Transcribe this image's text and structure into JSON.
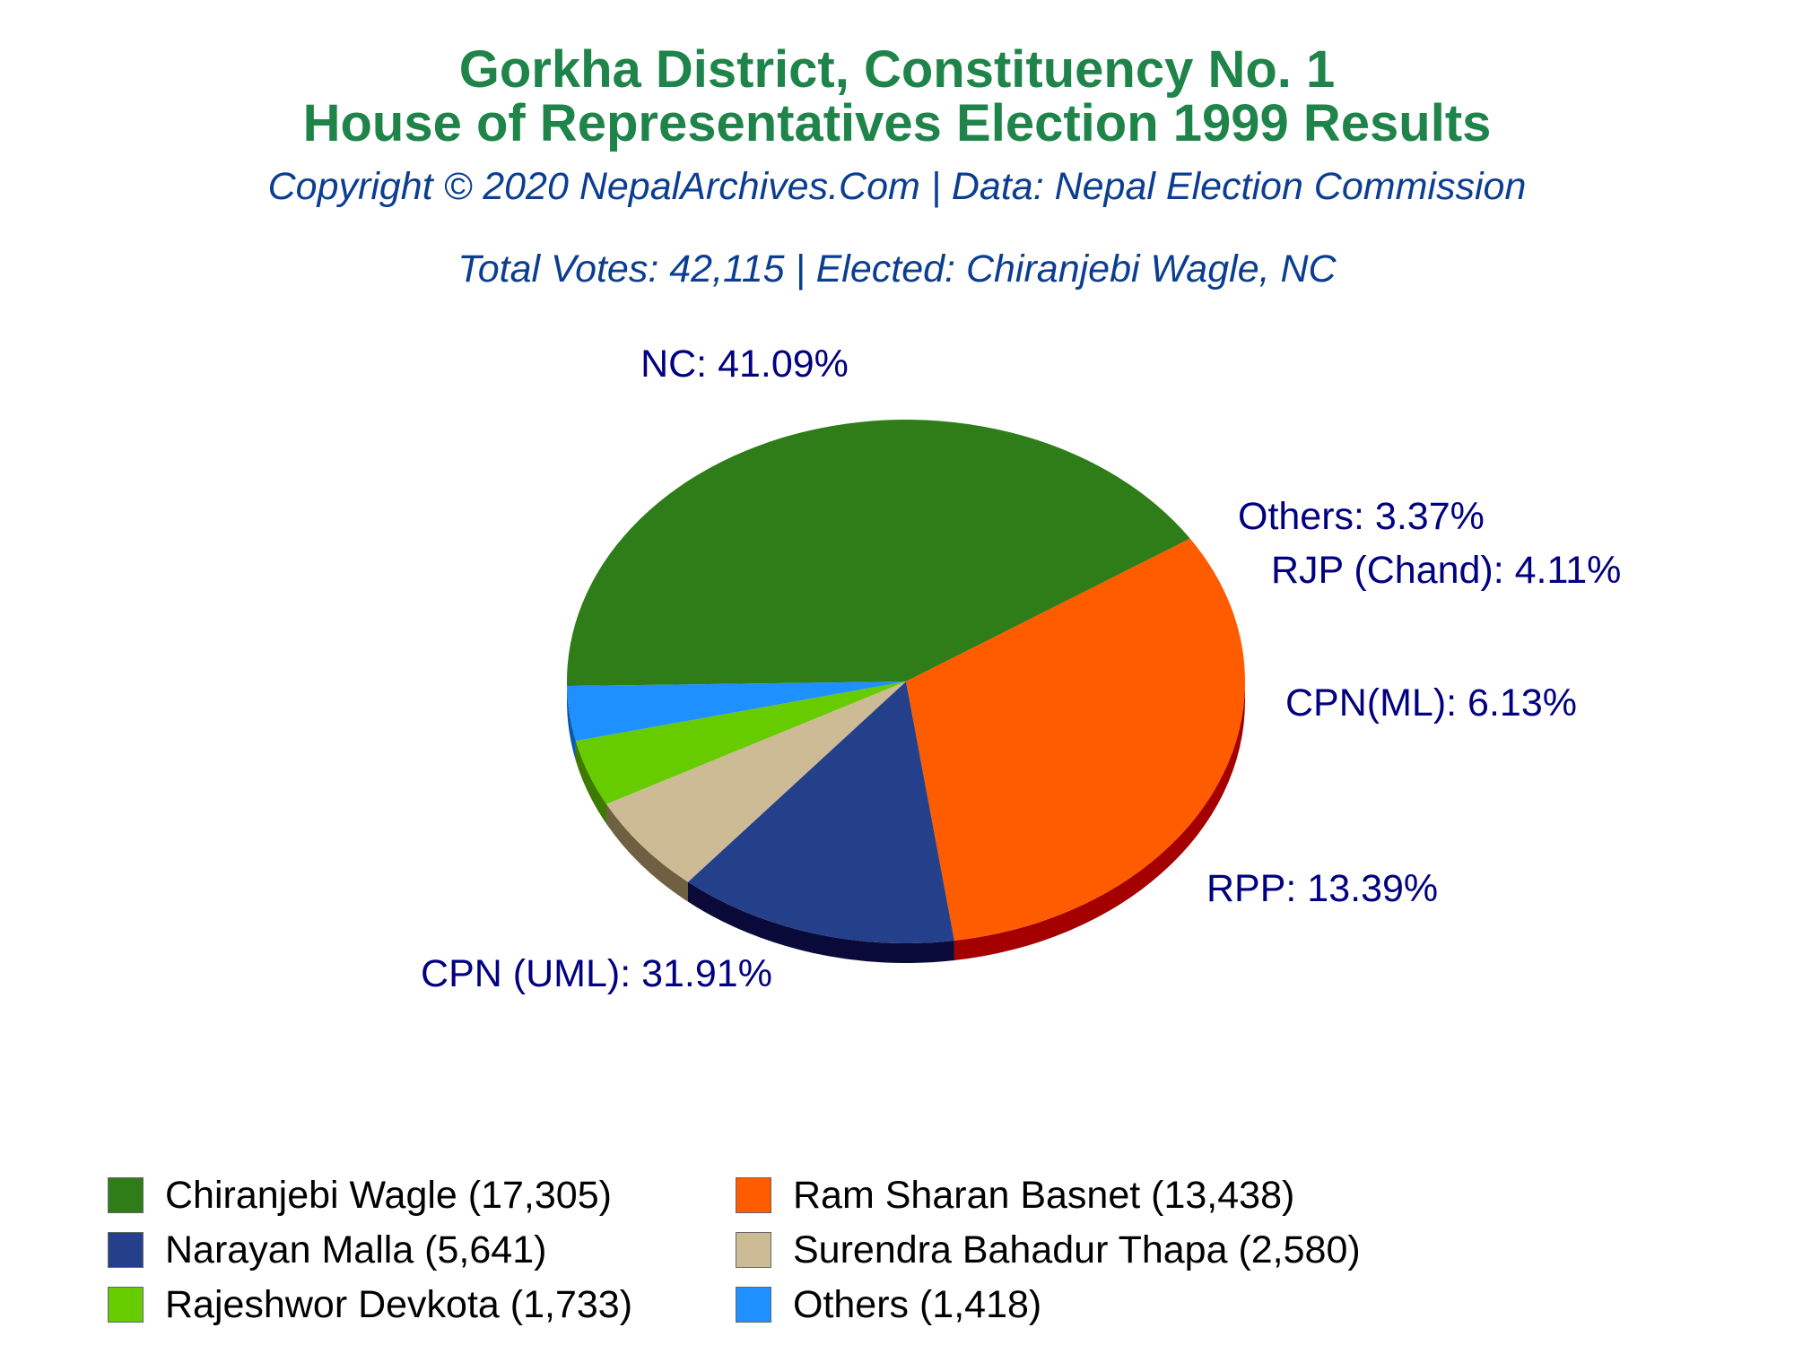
{
  "header": {
    "title_line1": "Gorkha District, Constituency No. 1",
    "title_line2": "House of Representatives Election 1999 Results",
    "copyright": "Copyright © 2020 NepalArchives.Com | Data: Nepal Election Commission",
    "summary": "Total Votes: 42,115 | Elected: Chiranjebi Wagle, NC"
  },
  "colors": {
    "title": "#1e8449",
    "subtitle": "#0b3d91",
    "slice_label": "#000080"
  },
  "chart_data": {
    "type": "pie",
    "title": "Gorkha District, Constituency No. 1 House of Representatives Election 1999 Results",
    "total_votes": 42115,
    "slices": [
      {
        "label": "NC: 41.09%",
        "party": "NC",
        "percent": 41.09,
        "candidate": "Chiranjebi Wagle",
        "votes": 17305,
        "legend": "Chiranjebi Wagle (17,305)",
        "color": "#2e7d18",
        "side": "#1c5210"
      },
      {
        "label": "CPN (UML): 31.91%",
        "party": "CPN (UML)",
        "percent": 31.91,
        "candidate": "Ram Sharan Basnet",
        "votes": 13438,
        "legend": "Ram Sharan Basnet (13,438)",
        "color": "#ff5c00",
        "side": "#a40000"
      },
      {
        "label": "RPP: 13.39%",
        "party": "RPP",
        "percent": 13.39,
        "candidate": "Narayan Malla",
        "votes": 5641,
        "legend": "Narayan Malla (5,641)",
        "color": "#25408a",
        "side": "#0a0a3a"
      },
      {
        "label": "CPN(ML): 6.13%",
        "party": "CPN(ML)",
        "percent": 6.13,
        "candidate": "Surendra Bahadur Thapa",
        "votes": 2580,
        "legend": "Surendra Bahadur Thapa (2,580)",
        "color": "#cdbb96",
        "side": "#6e6040"
      },
      {
        "label": "RJP (Chand): 4.11%",
        "party": "RJP (Chand)",
        "percent": 4.11,
        "candidate": "Rajeshwor Devkota",
        "votes": 1733,
        "legend": "Rajeshwor Devkota (1,733)",
        "color": "#66cc00",
        "side": "#3d7a00"
      },
      {
        "label": "Others: 3.37%",
        "party": "Others",
        "percent": 3.37,
        "candidate": "Others",
        "votes": 1418,
        "legend": "Others (1,418)",
        "color": "#1e90ff",
        "side": "#0b5aa8"
      }
    ],
    "legend_placement": "bottom"
  }
}
